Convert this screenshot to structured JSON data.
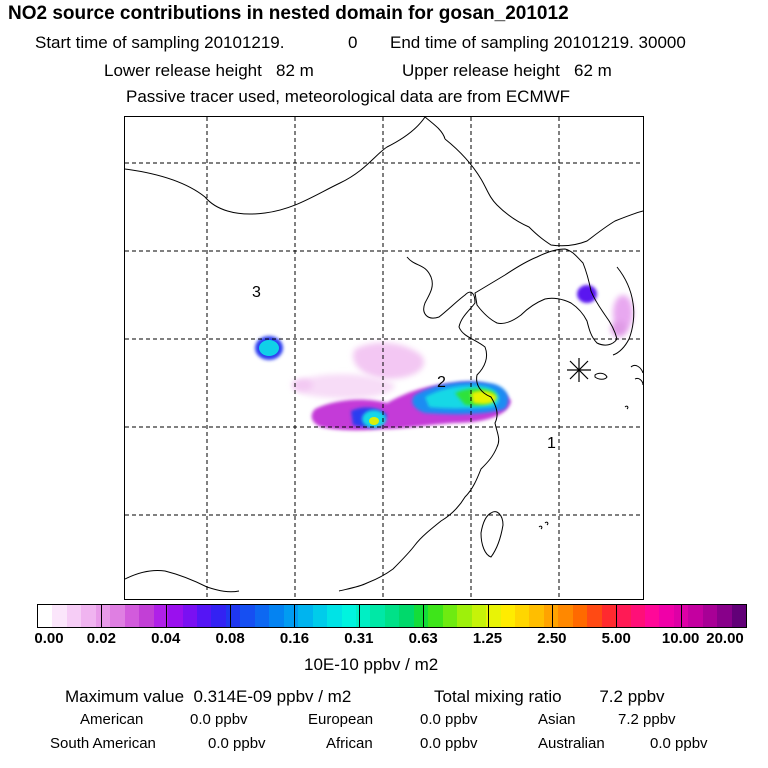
{
  "title": "NO2 source contributions in nested domain for gosan_201012",
  "header": {
    "start_label": "Start time of sampling 20101219.",
    "start_hour": "0",
    "end_label": "End time of sampling 20101219. 30000",
    "lower_release": "Lower release height   82 m",
    "upper_release": "Upper release height   62 m",
    "tracer_note": "Passive tracer used, meteorological data are from ECMWF"
  },
  "map": {
    "region_labels": [
      "1",
      "2",
      "3"
    ],
    "receptor_marker": "asterisk-marker"
  },
  "colorbar": {
    "tick_labels": [
      "0.00",
      "0.02",
      "0.04",
      "0.08",
      "0.16",
      "0.31",
      "0.63",
      "1.25",
      "2.50",
      "5.00",
      "10.00",
      "20.00"
    ],
    "units": "10E-10 ppbv / m2",
    "colors": [
      "#ffffff",
      "#fbe6fb",
      "#f6cdf6",
      "#f0b4f0",
      "#e89ae9",
      "#df7fe2",
      "#d25bdc",
      "#c23fd6",
      "#b020e8",
      "#9a10ee",
      "#7a10f2",
      "#5515f5",
      "#3322f3",
      "#1f37f0",
      "#164ff2",
      "#0d68f2",
      "#0483f2",
      "#019cf2",
      "#00b4ef",
      "#00ccea",
      "#00e3e6",
      "#00f4df",
      "#00efc4",
      "#00e8a6",
      "#00e188",
      "#00d96b",
      "#14dd3a",
      "#3ee51a",
      "#6eeb11",
      "#9ef00b",
      "#c6f309",
      "#e8f306",
      "#ffec00",
      "#ffd600",
      "#ffbe00",
      "#ffa300",
      "#ff8800",
      "#ff6a00",
      "#ff4a14",
      "#ff2a2f",
      "#ff1a55",
      "#ff0f78",
      "#ff0898",
      "#f000a8",
      "#dd00a6",
      "#c400a0",
      "#a80096",
      "#88008a",
      "#620078"
    ]
  },
  "stats": {
    "max_label": "Maximum value  0.314E-09 ppbv / m2",
    "total_label": "Total mixing ratio        7.2 ppbv",
    "american": "American",
    "american_val": "0.0 ppbv",
    "european": "European",
    "european_val": "0.0 ppbv",
    "asian": "Asian",
    "asian_val": "7.2 ppbv",
    "south_american": "South American",
    "south_american_val": "0.0 ppbv",
    "african": "African",
    "african_val": "0.0 ppbv",
    "australian": "Australian",
    "australian_val": "0.0 ppbv"
  }
}
